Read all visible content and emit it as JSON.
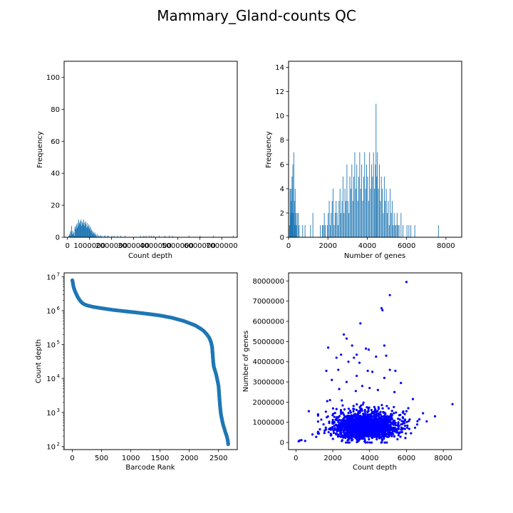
{
  "title": "Mammary_Gland-counts QC",
  "colors": {
    "histogram": "#1f77b4",
    "rank": "#1f77b4",
    "scatter": "#0000ff",
    "axes": "#000000"
  },
  "chart_data": [
    {
      "id": "count-depth-hist",
      "type": "bar",
      "xlabel": "Count depth",
      "ylabel": "Frequency",
      "xlim": [
        -150000,
        7700000
      ],
      "ylim": [
        0,
        110
      ],
      "xticks": [
        0,
        1000000,
        2000000,
        3000000,
        4000000,
        5000000,
        6000000,
        7000000
      ],
      "xtick_labels": [
        "0",
        "1000000",
        "2000000",
        "3000000",
        "4000000",
        "5000000",
        "6000000",
        "7000000"
      ],
      "yticks": [
        0,
        20,
        40,
        60,
        80,
        100
      ],
      "bin_width": 25000,
      "bins": [
        [
          50000,
          1
        ],
        [
          75000,
          2
        ],
        [
          100000,
          1
        ],
        [
          125000,
          4
        ],
        [
          150000,
          3
        ],
        [
          175000,
          7
        ],
        [
          200000,
          2
        ],
        [
          225000,
          4
        ],
        [
          250000,
          2
        ],
        [
          275000,
          3
        ],
        [
          300000,
          1
        ],
        [
          325000,
          6
        ],
        [
          350000,
          7
        ],
        [
          375000,
          5
        ],
        [
          400000,
          8
        ],
        [
          425000,
          6
        ],
        [
          450000,
          9
        ],
        [
          475000,
          7
        ],
        [
          500000,
          11
        ],
        [
          525000,
          9
        ],
        [
          550000,
          8
        ],
        [
          575000,
          10
        ],
        [
          600000,
          11
        ],
        [
          625000,
          7
        ],
        [
          650000,
          10
        ],
        [
          675000,
          9
        ],
        [
          700000,
          8
        ],
        [
          725000,
          11
        ],
        [
          750000,
          7
        ],
        [
          775000,
          9
        ],
        [
          800000,
          10
        ],
        [
          825000,
          8
        ],
        [
          850000,
          6
        ],
        [
          875000,
          9
        ],
        [
          900000,
          7
        ],
        [
          925000,
          6
        ],
        [
          950000,
          8
        ],
        [
          975000,
          5
        ],
        [
          1000000,
          7
        ],
        [
          1025000,
          6
        ],
        [
          1050000,
          4
        ],
        [
          1075000,
          5
        ],
        [
          1100000,
          3
        ],
        [
          1125000,
          4
        ],
        [
          1150000,
          2
        ],
        [
          1175000,
          3
        ],
        [
          1200000,
          2
        ],
        [
          1225000,
          3
        ],
        [
          1250000,
          1
        ],
        [
          1275000,
          2
        ],
        [
          1300000,
          1
        ],
        [
          1350000,
          2
        ],
        [
          1400000,
          1
        ],
        [
          1450000,
          1
        ],
        [
          1500000,
          1
        ],
        [
          1550000,
          1
        ],
        [
          1650000,
          1
        ],
        [
          1700000,
          1
        ],
        [
          1800000,
          1
        ],
        [
          1850000,
          1
        ],
        [
          2000000,
          1
        ],
        [
          2100000,
          1
        ],
        [
          2250000,
          1
        ],
        [
          2400000,
          1
        ],
        [
          2600000,
          1
        ],
        [
          3300000,
          1
        ],
        [
          3450000,
          1
        ],
        [
          3550000,
          1
        ],
        [
          3700000,
          1
        ],
        [
          3800000,
          1
        ],
        [
          3900000,
          1
        ],
        [
          4150000,
          1
        ],
        [
          4400000,
          1
        ],
        [
          4600000,
          1
        ],
        [
          4750000,
          1
        ],
        [
          5500000,
          1
        ],
        [
          6000000,
          1
        ],
        [
          6600000,
          1
        ],
        [
          7500000,
          1
        ]
      ]
    },
    {
      "id": "genes-hist",
      "type": "bar",
      "xlabel": "Number of genes",
      "ylabel": "Frequency",
      "xlim": [
        0,
        8800
      ],
      "ylim": [
        0,
        14.5
      ],
      "xticks": [
        0,
        2000,
        4000,
        6000,
        8000
      ],
      "xtick_labels": [
        "0",
        "2000",
        "4000",
        "6000",
        "8000"
      ],
      "yticks": [
        0,
        2,
        4,
        6,
        8,
        10,
        12,
        14
      ],
      "bin_width": 22,
      "bins": [
        [
          30,
          1
        ],
        [
          60,
          4
        ],
        [
          80,
          2
        ],
        [
          100,
          4
        ],
        [
          120,
          3
        ],
        [
          140,
          2
        ],
        [
          160,
          5
        ],
        [
          180,
          4
        ],
        [
          200,
          6
        ],
        [
          230,
          2
        ],
        [
          250,
          7
        ],
        [
          280,
          3
        ],
        [
          300,
          1
        ],
        [
          320,
          4
        ],
        [
          350,
          2
        ],
        [
          380,
          1
        ],
        [
          420,
          2
        ],
        [
          480,
          2
        ],
        [
          520,
          1
        ],
        [
          700,
          1
        ],
        [
          820,
          1
        ],
        [
          1100,
          1
        ],
        [
          1220,
          2
        ],
        [
          1600,
          1
        ],
        [
          1700,
          1
        ],
        [
          1750,
          1
        ],
        [
          1800,
          2
        ],
        [
          1850,
          1
        ],
        [
          1950,
          1
        ],
        [
          2000,
          2
        ],
        [
          2050,
          3
        ],
        [
          2100,
          1
        ],
        [
          2150,
          2
        ],
        [
          2200,
          3
        ],
        [
          2250,
          4
        ],
        [
          2300,
          1
        ],
        [
          2350,
          2
        ],
        [
          2400,
          3
        ],
        [
          2450,
          2
        ],
        [
          2500,
          1
        ],
        [
          2550,
          3
        ],
        [
          2600,
          4
        ],
        [
          2650,
          2
        ],
        [
          2700,
          3
        ],
        [
          2750,
          5
        ],
        [
          2800,
          2
        ],
        [
          2850,
          4
        ],
        [
          2900,
          3
        ],
        [
          2950,
          6
        ],
        [
          3000,
          3
        ],
        [
          3050,
          2
        ],
        [
          3100,
          5
        ],
        [
          3150,
          4
        ],
        [
          3200,
          6
        ],
        [
          3250,
          3
        ],
        [
          3300,
          5
        ],
        [
          3350,
          7
        ],
        [
          3400,
          4
        ],
        [
          3450,
          6
        ],
        [
          3500,
          3
        ],
        [
          3550,
          5
        ],
        [
          3600,
          7
        ],
        [
          3650,
          4
        ],
        [
          3700,
          6
        ],
        [
          3750,
          3
        ],
        [
          3800,
          5
        ],
        [
          3850,
          7
        ],
        [
          3900,
          4
        ],
        [
          3950,
          6
        ],
        [
          4000,
          5
        ],
        [
          4050,
          3
        ],
        [
          4100,
          7
        ],
        [
          4150,
          4
        ],
        [
          4200,
          6
        ],
        [
          4250,
          5
        ],
        [
          4300,
          7
        ],
        [
          4350,
          4
        ],
        [
          4400,
          6
        ],
        [
          4430,
          11
        ],
        [
          4470,
          5
        ],
        [
          4500,
          7
        ],
        [
          4550,
          4
        ],
        [
          4600,
          6
        ],
        [
          4650,
          3
        ],
        [
          4700,
          5
        ],
        [
          4750,
          4
        ],
        [
          4800,
          2
        ],
        [
          4850,
          5
        ],
        [
          4900,
          3
        ],
        [
          4950,
          4
        ],
        [
          5000,
          2
        ],
        [
          5050,
          3
        ],
        [
          5100,
          1
        ],
        [
          5150,
          4
        ],
        [
          5200,
          2
        ],
        [
          5250,
          3
        ],
        [
          5300,
          1
        ],
        [
          5350,
          2
        ],
        [
          5400,
          1
        ],
        [
          5450,
          1
        ],
        [
          5500,
          2
        ],
        [
          5550,
          1
        ],
        [
          5600,
          1
        ],
        [
          5700,
          2
        ],
        [
          5800,
          1
        ],
        [
          6000,
          1
        ],
        [
          6100,
          1
        ],
        [
          6200,
          1
        ],
        [
          6400,
          1
        ],
        [
          7600,
          1
        ]
      ]
    },
    {
      "id": "barcode-rank",
      "type": "scatter",
      "xlabel": "Barcode Rank",
      "ylabel": "Count depth",
      "xlim": [
        -140,
        2820
      ],
      "ylog": true,
      "ylim": [
        80,
        13000000
      ],
      "xticks": [
        0,
        500,
        1000,
        1500,
        2000,
        2500
      ],
      "yticks": [
        100,
        1000,
        10000,
        100000,
        1000000,
        10000000
      ],
      "ytick_labels": [
        [
          "10",
          "2"
        ],
        [
          "10",
          "3"
        ],
        [
          "10",
          "4"
        ],
        [
          "10",
          "5"
        ],
        [
          "10",
          "6"
        ],
        [
          "10",
          "7"
        ]
      ],
      "curve": [
        [
          0,
          7900000
        ],
        [
          10,
          6500000
        ],
        [
          20,
          5100000
        ],
        [
          40,
          4000000
        ],
        [
          60,
          3300000
        ],
        [
          80,
          2800000
        ],
        [
          100,
          2400000
        ],
        [
          130,
          2000000
        ],
        [
          160,
          1750000
        ],
        [
          200,
          1550000
        ],
        [
          260,
          1420000
        ],
        [
          350,
          1300000
        ],
        [
          500,
          1180000
        ],
        [
          700,
          1050000
        ],
        [
          900,
          960000
        ],
        [
          1100,
          880000
        ],
        [
          1300,
          800000
        ],
        [
          1500,
          720000
        ],
        [
          1700,
          620000
        ],
        [
          1900,
          500000
        ],
        [
          2100,
          370000
        ],
        [
          2200,
          290000
        ],
        [
          2250,
          250000
        ],
        [
          2300,
          200000
        ],
        [
          2340,
          160000
        ],
        [
          2370,
          120000
        ],
        [
          2390,
          85000
        ],
        [
          2400,
          50000
        ],
        [
          2410,
          30000
        ],
        [
          2420,
          22000
        ],
        [
          2440,
          17000
        ],
        [
          2460,
          13000
        ],
        [
          2480,
          9000
        ],
        [
          2500,
          6000
        ],
        [
          2510,
          3500
        ],
        [
          2520,
          2000
        ],
        [
          2530,
          1300
        ],
        [
          2540,
          900
        ],
        [
          2560,
          600
        ],
        [
          2580,
          420
        ],
        [
          2600,
          330
        ],
        [
          2620,
          250
        ],
        [
          2640,
          200
        ],
        [
          2650,
          170
        ],
        [
          2660,
          140
        ],
        [
          2665,
          115
        ]
      ]
    },
    {
      "id": "depth-vs-genes",
      "type": "scatter",
      "xlabel": "Count depth",
      "ylabel": "Number of genes",
      "xlim": [
        -400,
        9000
      ],
      "ylim": [
        -350000,
        8400000
      ],
      "xticks": [
        0,
        2000,
        4000,
        6000,
        8000
      ],
      "yticks": [
        0,
        1000000,
        2000000,
        3000000,
        4000000,
        5000000,
        6000000,
        7000000,
        8000000
      ],
      "ytick_labels": [
        "0",
        "1000000",
        "2000000",
        "3000000",
        "4000000",
        "5000000",
        "6000000",
        "7000000",
        "8000000"
      ],
      "points": [
        [
          6000,
          7950000
        ],
        [
          5100,
          7300000
        ],
        [
          4650,
          6650000
        ],
        [
          4700,
          6550000
        ],
        [
          3500,
          5900000
        ],
        [
          2600,
          5350000
        ],
        [
          2750,
          5150000
        ],
        [
          1750,
          4700000
        ],
        [
          3050,
          4800000
        ],
        [
          3800,
          4650000
        ],
        [
          3950,
          4600000
        ],
        [
          4800,
          4800000
        ],
        [
          3300,
          4350000
        ],
        [
          2200,
          4200000
        ],
        [
          3150,
          4200000
        ],
        [
          4350,
          4250000
        ],
        [
          2850,
          4000000
        ],
        [
          3450,
          3950000
        ],
        [
          1650,
          3550000
        ],
        [
          2300,
          3600000
        ],
        [
          3900,
          3550000
        ],
        [
          5100,
          3600000
        ],
        [
          3300,
          3300000
        ],
        [
          4150,
          3500000
        ],
        [
          1950,
          3100000
        ],
        [
          2750,
          3000000
        ],
        [
          4800,
          3200000
        ],
        [
          5700,
          2950000
        ],
        [
          2350,
          2650000
        ],
        [
          3600,
          2800000
        ],
        [
          4450,
          2600000
        ],
        [
          5350,
          2500000
        ],
        [
          3250,
          2550000
        ],
        [
          4000,
          2700000
        ],
        [
          1850,
          2100000
        ],
        [
          1700,
          2050000
        ],
        [
          6350,
          2150000
        ],
        [
          6100,
          1700000
        ],
        [
          6900,
          1450000
        ],
        [
          7550,
          1300000
        ],
        [
          8500,
          1900000
        ],
        [
          6700,
          1150000
        ],
        [
          7100,
          1050000
        ],
        [
          6000,
          1550000
        ],
        [
          5800,
          1250000
        ],
        [
          700,
          1550000
        ],
        [
          1300,
          650000
        ],
        [
          900,
          400000
        ],
        [
          200,
          100000
        ],
        [
          300,
          120000
        ],
        [
          500,
          80000
        ],
        [
          150,
          60000
        ],
        [
          1100,
          280000
        ],
        [
          1500,
          900000
        ],
        [
          5400,
          3550000
        ],
        [
          2450,
          4350000
        ],
        [
          4900,
          4300000
        ]
      ],
      "cluster": {
        "center": [
          3800,
          750000
        ],
        "spread": [
          850,
          380000
        ],
        "count": 1900,
        "x_range": [
          1200,
          6600
        ],
        "y_range": [
          0,
          2100000
        ]
      }
    }
  ]
}
